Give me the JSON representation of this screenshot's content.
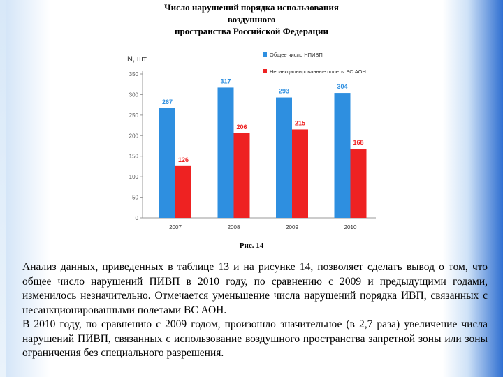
{
  "title_lines": [
    "Число нарушений порядка использования",
    "воздушного",
    "пространства Российской Федерации"
  ],
  "chart_data": {
    "type": "bar",
    "categories": [
      "2007",
      "2008",
      "2009",
      "2010"
    ],
    "series": [
      {
        "name": "Общее число НПИВП",
        "color": "#2e8fe0",
        "values": [
          267,
          317,
          293,
          304
        ]
      },
      {
        "name": "Несанкционированные полеты ВС АОН",
        "color": "#ee2222",
        "values": [
          126,
          206,
          215,
          168
        ]
      }
    ],
    "y_label": "N, шт",
    "y_ticks": [
      "0",
      "50",
      "100",
      "150",
      "200",
      "250",
      "300",
      "350"
    ],
    "ylim": [
      0,
      350
    ],
    "grid": false,
    "legend_position": "top-right"
  },
  "figure_caption": "Рис. 14",
  "paragraphs": [
    "Анализ данных, приведенных в таблице 13 и на рисунке 14, позволяет сделать вывод о том, что общее число нарушений ПИВП в 2010 году, по сравнению с 2009 и предыдущими годами, изменилось незначительно. Отмечается уменьшение числа нарушений порядка ИВП, связанных с несанкционированными полетами ВС АОН.",
    "В 2010 году, по сравнению с 2009 годом, произошло значительное (в 2,7 раза) увеличение числа нарушений ПИВП, связанных с использование воздушного пространства запретной зоны или зоны ограничения без специального разрешения."
  ]
}
